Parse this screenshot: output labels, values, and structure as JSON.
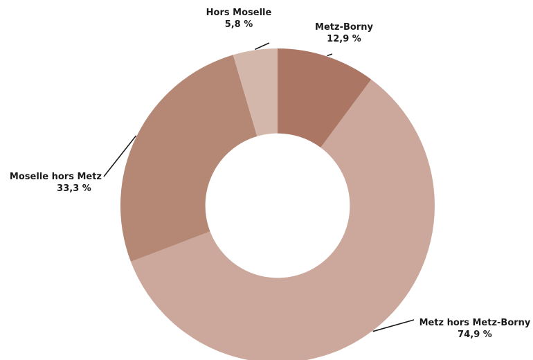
{
  "chart_data": {
    "type": "pie",
    "title": "",
    "categories": [
      "Metz-Borny",
      "Metz hors Metz-Borny",
      "Moselle hors Metz",
      "Hors Moselle"
    ],
    "values": [
      12.9,
      74.9,
      33.3,
      5.8
    ],
    "value_labels": [
      "12,9 %",
      "74,9 %",
      "33,3 %",
      "5,8 %"
    ],
    "colors": [
      "#ab7664",
      "#cba89b",
      "#b58875",
      "#d4b7ab"
    ],
    "hole_ratio": 0.46,
    "start_angle_deg": 0,
    "direction": "clockwise",
    "legend": "none"
  }
}
